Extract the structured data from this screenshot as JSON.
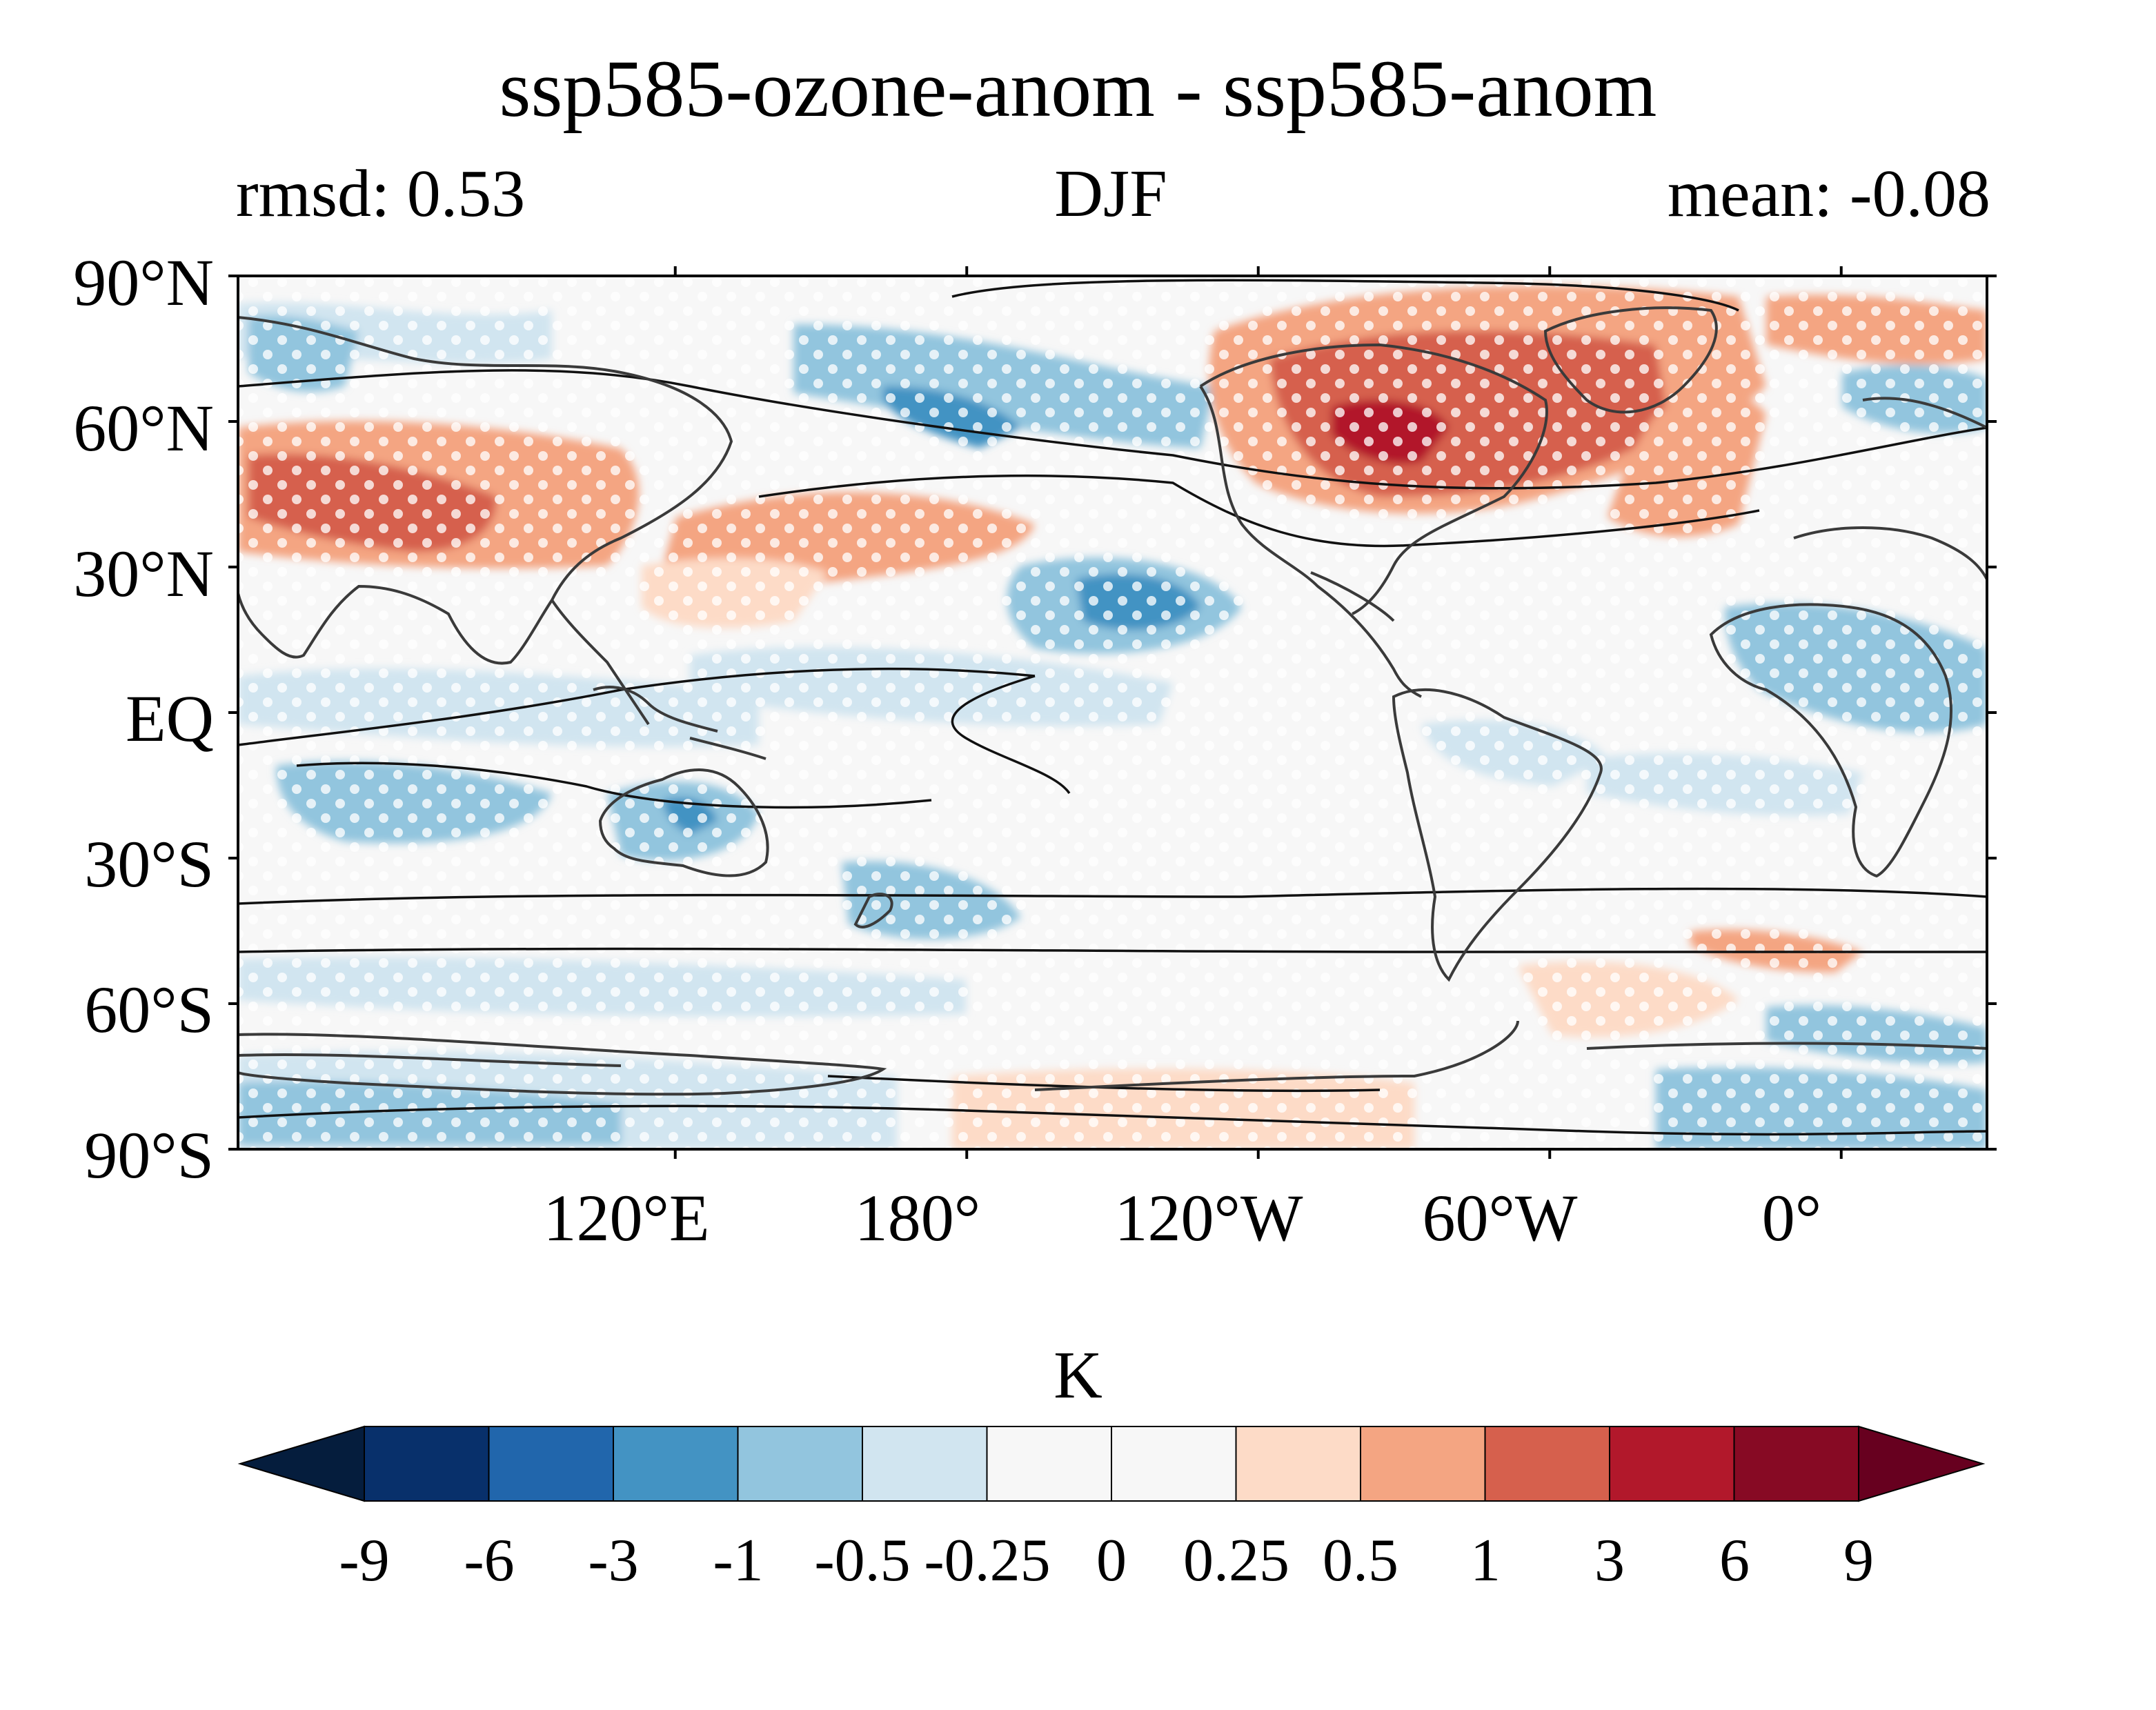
{
  "header": {
    "title": "ssp585-ozone-anom - ssp585-anom",
    "left_label": "rmsd: 0.53",
    "center_label": "DJF",
    "right_label": "mean: -0.08"
  },
  "map": {
    "projection": "PlateCarree",
    "central_longitude": 210,
    "lat_range": [
      -90,
      90
    ],
    "lat_ticks": [
      {
        "label": "90°N",
        "lat": 90
      },
      {
        "label": "60°N",
        "lat": 60
      },
      {
        "label": "30°N",
        "lat": 30
      },
      {
        "label": "EQ",
        "lat": 0
      },
      {
        "label": "30°S",
        "lat": -30
      },
      {
        "label": "60°S",
        "lat": -60
      },
      {
        "label": "90°S",
        "lat": -90
      }
    ],
    "lon_ticks": [
      {
        "label": "120°E",
        "lon": 120
      },
      {
        "label": "180°",
        "lon": 180
      },
      {
        "label": "120°W",
        "lon": -120
      },
      {
        "label": "60°W",
        "lon": -60
      },
      {
        "label": "0°",
        "lon": 0
      }
    ],
    "field": "DJF temperature anomaly difference",
    "stippling": "white dots mark non-significant regions",
    "contours": "black climatology contour lines over coastlines"
  },
  "colorbar": {
    "unit": "K",
    "levels": [
      "-9",
      "-6",
      "-3",
      "-1",
      "-0.5",
      "-0.25",
      "0",
      "0.25",
      "0.5",
      "1",
      "3",
      "6",
      "9"
    ],
    "colors": [
      "#08306b",
      "#2166ac",
      "#4393c3",
      "#92c5de",
      "#d1e5f0",
      "#f7f7f7",
      "#f7f7f7",
      "#fddbc7",
      "#f4a582",
      "#d6604d",
      "#b2182b",
      "#870a24"
    ],
    "under_color": "#051d3d",
    "over_color": "#67001f"
  }
}
